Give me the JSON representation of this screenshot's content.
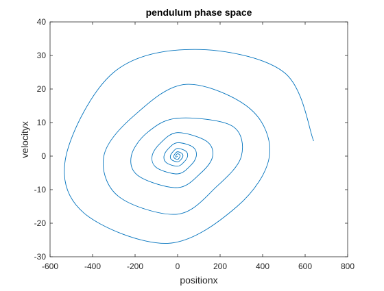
{
  "chart_data": {
    "type": "line",
    "title": "pendulum phase space",
    "xlabel": "positionx",
    "ylabel": "velocityx",
    "xlim": [
      -600,
      800
    ],
    "ylim": [
      -30,
      40
    ],
    "xticks": [
      -600,
      -400,
      -200,
      0,
      200,
      400,
      600,
      800
    ],
    "yticks": [
      -30,
      -20,
      -10,
      0,
      10,
      20,
      30,
      40
    ],
    "xtick_labels": [
      "-600",
      "-400",
      "-200",
      "0",
      "200",
      "400",
      "600",
      "800"
    ],
    "ytick_labels": [
      "-30",
      "-20",
      "-10",
      "0",
      "10",
      "20",
      "30",
      "40"
    ],
    "grid": false,
    "series_color": "#0072BD",
    "series": [
      {
        "description": "damped spiral, clockwise, starting at (640, 4.5) and decaying toward (0, 0)",
        "x": [
          640,
          500,
          81,
          -300,
          -525,
          -440,
          -46,
          280,
          432,
          343,
          40,
          -206,
          -347,
          -278,
          0,
          185,
          300,
          256,
          0,
          -143,
          -218,
          -182,
          0,
          110,
          165,
          135,
          0,
          -79,
          -120,
          -98,
          0,
          58,
          88,
          72,
          0,
          -42,
          -64,
          -52,
          0,
          31,
          47,
          38,
          0,
          -22,
          -34,
          -28,
          0,
          16,
          25,
          20,
          0,
          -12,
          -18,
          -15,
          0,
          8,
          12,
          10,
          0,
          -6,
          -9,
          -7,
          0
        ],
        "y": [
          4.5,
          25,
          31.8,
          25,
          0,
          -17,
          -26,
          -15,
          0,
          14,
          21.4,
          12,
          0,
          -12,
          -17.3,
          -9,
          0,
          9,
          11.3,
          7,
          0,
          -6,
          -9.4,
          -5,
          0,
          4.5,
          7.0,
          4,
          0,
          -3.5,
          -5.3,
          -3,
          0,
          2.7,
          4.0,
          2.3,
          0,
          -2.0,
          -3.0,
          -1.7,
          0,
          1.5,
          2.3,
          1.3,
          0,
          -1.1,
          -1.7,
          -1.0,
          0,
          0.8,
          1.3,
          0.7,
          0,
          -0.6,
          -1.0,
          -0.5,
          0,
          0.4,
          0.7,
          0.4,
          0,
          -0.3,
          0
        ]
      }
    ]
  }
}
